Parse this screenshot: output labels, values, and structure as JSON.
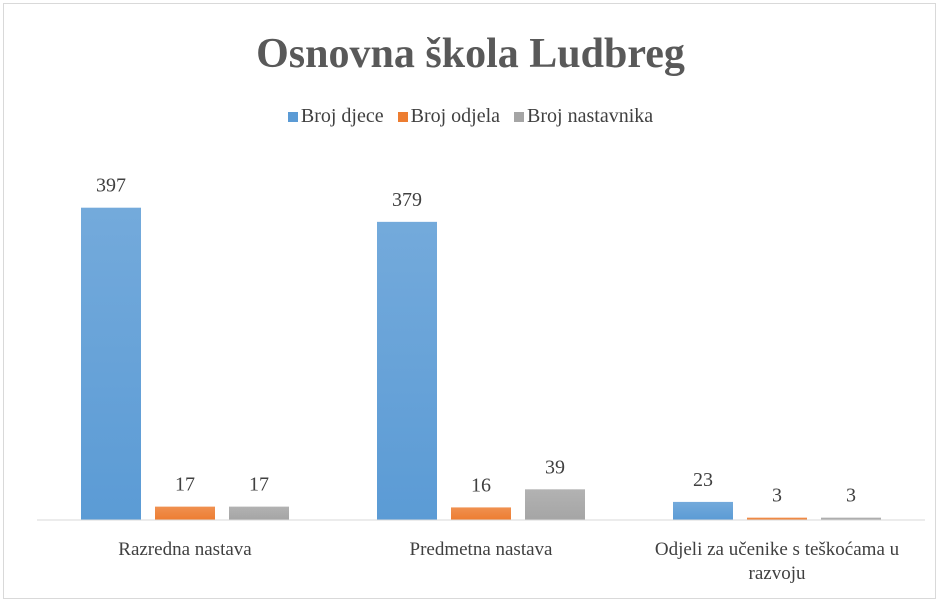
{
  "chart_data": {
    "type": "bar",
    "title": "Osnovna škola Ludbreg",
    "categories": [
      "Razredna nastava",
      "Predmetna nastava",
      "Odjeli za učenike s teškoćama u razvoju"
    ],
    "series": [
      {
        "name": "Broj djece",
        "color": "#5b9bd5",
        "values": [
          397,
          379,
          23
        ]
      },
      {
        "name": "Broj odjela",
        "color": "#ed7d31",
        "values": [
          17,
          16,
          3
        ]
      },
      {
        "name": "Broj nastavnika",
        "color": "#a5a5a5",
        "values": [
          17,
          39,
          3
        ]
      }
    ],
    "ylim": [
      0,
      450
    ],
    "legend": "top"
  }
}
